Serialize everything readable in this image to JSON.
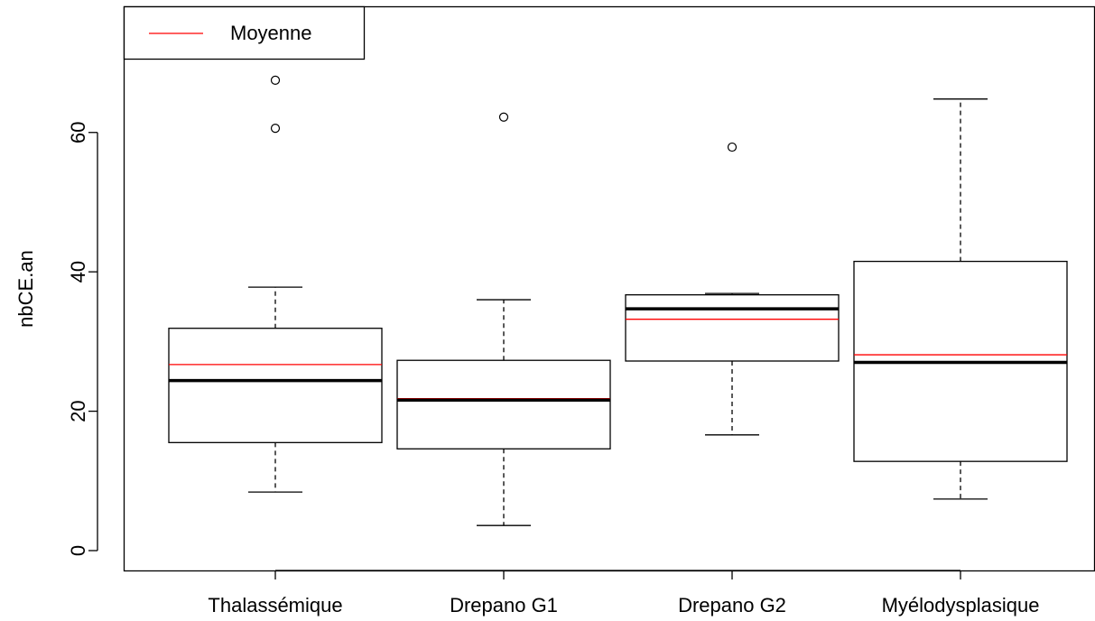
{
  "chart_data": {
    "type": "box",
    "ylabel": "nbCE.an",
    "categories": [
      "Thalassémique",
      "Drepano G1",
      "Drepano G2",
      "Myélodysplasique"
    ],
    "boxes": [
      {
        "min": 8.4,
        "q1": 15.5,
        "median": 24.4,
        "q3": 31.9,
        "max": 37.8,
        "mean": 26.7,
        "outliers": [
          67.5,
          60.6
        ]
      },
      {
        "min": 3.6,
        "q1": 14.6,
        "median": 21.6,
        "q3": 27.3,
        "max": 36.0,
        "mean": 21.8,
        "outliers": [
          62.2
        ]
      },
      {
        "min": 16.6,
        "q1": 27.2,
        "median": 34.7,
        "q3": 36.7,
        "max": 36.9,
        "mean": 33.2,
        "outliers": [
          57.9
        ]
      },
      {
        "min": 7.4,
        "q1": 12.8,
        "median": 27.0,
        "q3": 41.5,
        "max": 64.8,
        "mean": 28.1,
        "outliers": []
      }
    ],
    "legend": {
      "name": "Moyenne",
      "color": "#ff0000",
      "position": "top-left"
    },
    "ylim": [
      -2.85,
      78.1
    ],
    "yticks": [
      0,
      20,
      40,
      60
    ]
  }
}
